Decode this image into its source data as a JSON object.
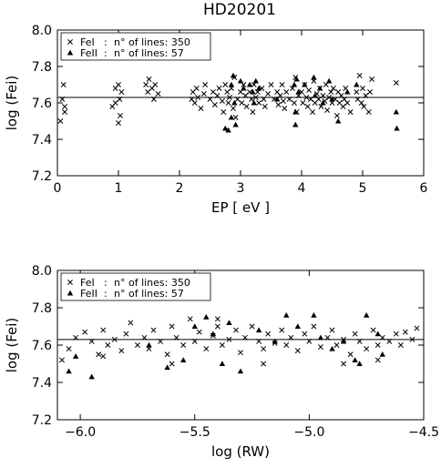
{
  "figure": {
    "title": "HD20201"
  },
  "chart_data": [
    {
      "type": "scatter",
      "xlabel": "EP [ eV ]",
      "ylabel": "log (Fei)",
      "xlim": [
        0,
        6
      ],
      "ylim": [
        7.2,
        8.0
      ],
      "x_ticks": [
        0,
        1,
        2,
        3,
        4,
        5,
        6
      ],
      "x_tick_labels": [
        "0",
        "1",
        "2",
        "3",
        "4",
        "5",
        "6"
      ],
      "y_ticks": [
        7.2,
        7.4,
        7.6,
        7.8,
        8.0
      ],
      "y_tick_labels": [
        "7.2",
        "7.4",
        "7.6",
        "7.8",
        "8.0"
      ],
      "mean_line": 7.63,
      "legend_position": "top-left",
      "legend": [
        {
          "marker": "cross",
          "species": "FeI",
          "text": "n° of lines: 350"
        },
        {
          "marker": "triangle",
          "species": "FeII",
          "text": "n° of lines:  57"
        }
      ],
      "series": [
        {
          "name": "FeI",
          "marker": "cross",
          "points": [
            [
              0.05,
              7.5
            ],
            [
              0.08,
              7.62
            ],
            [
              0.1,
              7.7
            ],
            [
              0.12,
              7.58
            ],
            [
              0.12,
              7.55
            ],
            [
              0.95,
              7.6
            ],
            [
              0.95,
              7.68
            ],
            [
              1.0,
              7.7
            ],
            [
              1.02,
              7.62
            ],
            [
              1.03,
              7.53
            ],
            [
              1.05,
              7.66
            ],
            [
              1.0,
              7.49
            ],
            [
              0.9,
              7.58
            ],
            [
              1.45,
              7.7
            ],
            [
              1.48,
              7.66
            ],
            [
              1.5,
              7.73
            ],
            [
              1.55,
              7.68
            ],
            [
              1.58,
              7.62
            ],
            [
              1.6,
              7.7
            ],
            [
              1.65,
              7.65
            ],
            [
              2.2,
              7.62
            ],
            [
              2.22,
              7.66
            ],
            [
              2.25,
              7.6
            ],
            [
              2.28,
              7.68
            ],
            [
              2.3,
              7.63
            ],
            [
              2.35,
              7.57
            ],
            [
              2.4,
              7.65
            ],
            [
              2.42,
              7.7
            ],
            [
              2.5,
              7.62
            ],
            [
              2.55,
              7.66
            ],
            [
              2.58,
              7.59
            ],
            [
              2.62,
              7.64
            ],
            [
              2.65,
              7.68
            ],
            [
              2.7,
              7.61
            ],
            [
              2.72,
              7.55
            ],
            [
              2.75,
              7.7
            ],
            [
              2.78,
              7.66
            ],
            [
              2.8,
              7.6
            ],
            [
              2.82,
              7.63
            ],
            [
              2.85,
              7.68
            ],
            [
              2.88,
              7.57
            ],
            [
              2.9,
              7.74
            ],
            [
              2.92,
              7.52
            ],
            [
              2.95,
              7.62
            ],
            [
              3.0,
              7.66
            ],
            [
              3.02,
              7.6
            ],
            [
              3.05,
              7.7
            ],
            [
              3.08,
              7.64
            ],
            [
              3.1,
              7.58
            ],
            [
              3.15,
              7.66
            ],
            [
              3.18,
              7.62
            ],
            [
              3.2,
              7.55
            ],
            [
              3.22,
              7.7
            ],
            [
              3.25,
              7.63
            ],
            [
              3.28,
              7.66
            ],
            [
              3.3,
              7.6
            ],
            [
              3.35,
              7.68
            ],
            [
              3.38,
              7.62
            ],
            [
              3.4,
              7.58
            ],
            [
              3.45,
              7.65
            ],
            [
              3.5,
              7.7
            ],
            [
              3.55,
              7.62
            ],
            [
              3.6,
              7.66
            ],
            [
              3.62,
              7.59
            ],
            [
              3.65,
              7.64
            ],
            [
              3.68,
              7.7
            ],
            [
              3.7,
              7.61
            ],
            [
              3.72,
              7.57
            ],
            [
              3.75,
              7.66
            ],
            [
              3.8,
              7.62
            ],
            [
              3.85,
              7.68
            ],
            [
              3.88,
              7.6
            ],
            [
              3.9,
              7.74
            ],
            [
              3.92,
              7.55
            ],
            [
              3.95,
              7.64
            ],
            [
              4.0,
              7.66
            ],
            [
              4.02,
              7.6
            ],
            [
              4.05,
              7.7
            ],
            [
              4.08,
              7.63
            ],
            [
              4.1,
              7.58
            ],
            [
              4.12,
              7.67
            ],
            [
              4.15,
              7.62
            ],
            [
              4.18,
              7.55
            ],
            [
              4.2,
              7.72
            ],
            [
              4.22,
              7.6
            ],
            [
              4.25,
              7.65
            ],
            [
              4.28,
              7.62
            ],
            [
              4.3,
              7.68
            ],
            [
              4.32,
              7.58
            ],
            [
              4.35,
              7.64
            ],
            [
              4.38,
              7.61
            ],
            [
              4.4,
              7.7
            ],
            [
              4.42,
              7.56
            ],
            [
              4.45,
              7.63
            ],
            [
              4.48,
              7.66
            ],
            [
              4.5,
              7.6
            ],
            [
              4.52,
              7.68
            ],
            [
              4.55,
              7.62
            ],
            [
              4.58,
              7.53
            ],
            [
              4.6,
              7.66
            ],
            [
              4.62,
              7.6
            ],
            [
              4.65,
              7.64
            ],
            [
              4.68,
              7.58
            ],
            [
              4.7,
              7.62
            ],
            [
              4.72,
              7.68
            ],
            [
              4.75,
              7.6
            ],
            [
              4.8,
              7.55
            ],
            [
              4.9,
              7.66
            ],
            [
              4.92,
              7.62
            ],
            [
              4.95,
              7.75
            ],
            [
              4.98,
              7.6
            ],
            [
              5.0,
              7.68
            ],
            [
              5.02,
              7.58
            ],
            [
              5.05,
              7.64
            ],
            [
              5.1,
              7.55
            ],
            [
              5.12,
              7.66
            ],
            [
              5.15,
              7.73
            ],
            [
              5.55,
              7.71
            ]
          ]
        },
        {
          "name": "FeII",
          "marker": "triangle",
          "points": [
            [
              2.75,
              7.46
            ],
            [
              2.8,
              7.45
            ],
            [
              2.85,
              7.7
            ],
            [
              2.85,
              7.52
            ],
            [
              2.88,
              7.75
            ],
            [
              2.9,
              7.6
            ],
            [
              2.92,
              7.48
            ],
            [
              3.0,
              7.72
            ],
            [
              3.05,
              7.68
            ],
            [
              3.15,
              7.7
            ],
            [
              3.2,
              7.66
            ],
            [
              3.22,
              7.6
            ],
            [
              3.25,
              7.72
            ],
            [
              3.3,
              7.68
            ],
            [
              3.6,
              7.62
            ],
            [
              3.88,
              7.7
            ],
            [
              3.9,
              7.55
            ],
            [
              3.9,
              7.48
            ],
            [
              3.92,
              7.73
            ],
            [
              3.95,
              7.66
            ],
            [
              4.05,
              7.7
            ],
            [
              4.2,
              7.74
            ],
            [
              4.22,
              7.64
            ],
            [
              4.3,
              7.68
            ],
            [
              4.35,
              7.6
            ],
            [
              4.45,
              7.72
            ],
            [
              4.5,
              7.62
            ],
            [
              4.6,
              7.5
            ],
            [
              4.75,
              7.66
            ],
            [
              4.9,
              7.7
            ],
            [
              5.55,
              7.55
            ],
            [
              5.56,
              7.46
            ]
          ]
        }
      ]
    },
    {
      "type": "scatter",
      "xlabel": "log (RW)",
      "ylabel": "log (Fei)",
      "xlim": [
        -6.1,
        -4.5
      ],
      "ylim": [
        7.2,
        8.0
      ],
      "x_ticks": [
        -6.0,
        -5.5,
        -5.0,
        -4.5
      ],
      "x_tick_labels": [
        "−6.0",
        "−5.5",
        "−5.0",
        "−4.5"
      ],
      "y_ticks": [
        7.2,
        7.4,
        7.6,
        7.8,
        8.0
      ],
      "y_tick_labels": [
        "7.2",
        "7.4",
        "7.6",
        "7.8",
        "8.0"
      ],
      "mean_line": 7.63,
      "legend_position": "top-left",
      "legend": [
        {
          "marker": "cross",
          "species": "FeI",
          "text": "n° of lines: 350"
        },
        {
          "marker": "triangle",
          "species": "FeII",
          "text": "n° of lines:  57"
        }
      ],
      "series": [
        {
          "name": "FeI",
          "marker": "cross",
          "points": [
            [
              -6.08,
              7.52
            ],
            [
              -6.05,
              7.58
            ],
            [
              -6.02,
              7.64
            ],
            [
              -5.98,
              7.67
            ],
            [
              -5.95,
              7.62
            ],
            [
              -5.92,
              7.55
            ],
            [
              -5.9,
              7.68
            ],
            [
              -5.88,
              7.6
            ],
            [
              -5.85,
              7.63
            ],
            [
              -5.82,
              7.57
            ],
            [
              -5.8,
              7.66
            ],
            [
              -5.78,
              7.72
            ],
            [
              -5.75,
              7.6
            ],
            [
              -5.72,
              7.64
            ],
            [
              -5.7,
              7.58
            ],
            [
              -5.68,
              7.68
            ],
            [
              -5.65,
              7.62
            ],
            [
              -5.62,
              7.55
            ],
            [
              -5.6,
              7.7
            ],
            [
              -5.58,
              7.64
            ],
            [
              -5.55,
              7.6
            ],
            [
              -5.52,
              7.74
            ],
            [
              -5.5,
              7.62
            ],
            [
              -5.48,
              7.67
            ],
            [
              -5.45,
              7.58
            ],
            [
              -5.42,
              7.65
            ],
            [
              -5.4,
              7.7
            ],
            [
              -5.38,
              7.6
            ],
            [
              -5.35,
              7.63
            ],
            [
              -5.32,
              7.68
            ],
            [
              -5.3,
              7.56
            ],
            [
              -5.28,
              7.64
            ],
            [
              -5.25,
              7.7
            ],
            [
              -5.22,
              7.62
            ],
            [
              -5.2,
              7.58
            ],
            [
              -5.18,
              7.66
            ],
            [
              -5.15,
              7.61
            ],
            [
              -5.12,
              7.68
            ],
            [
              -5.1,
              7.6
            ],
            [
              -5.08,
              7.64
            ],
            [
              -5.05,
              7.57
            ],
            [
              -5.02,
              7.66
            ],
            [
              -5.0,
              7.62
            ],
            [
              -4.98,
              7.7
            ],
            [
              -4.95,
              7.59
            ],
            [
              -4.92,
              7.64
            ],
            [
              -4.9,
              7.68
            ],
            [
              -4.88,
              7.6
            ],
            [
              -4.85,
              7.63
            ],
            [
              -4.82,
              7.55
            ],
            [
              -4.8,
              7.66
            ],
            [
              -4.78,
              7.62
            ],
            [
              -4.75,
              7.58
            ],
            [
              -4.72,
              7.68
            ],
            [
              -4.7,
              7.6
            ],
            [
              -4.68,
              7.64
            ],
            [
              -4.65,
              7.62
            ],
            [
              -4.62,
              7.66
            ],
            [
              -4.6,
              7.6
            ],
            [
              -4.58,
              7.67
            ],
            [
              -4.55,
              7.63
            ],
            [
              -4.53,
              7.69
            ],
            [
              -5.9,
              7.54
            ],
            [
              -5.6,
              7.5
            ],
            [
              -5.4,
              7.74
            ],
            [
              -5.2,
              7.5
            ],
            [
              -4.85,
              7.5
            ],
            [
              -4.7,
              7.52
            ]
          ]
        },
        {
          "name": "FeII",
          "marker": "triangle",
          "points": [
            [
              -6.05,
              7.46
            ],
            [
              -6.02,
              7.54
            ],
            [
              -5.95,
              7.43
            ],
            [
              -5.7,
              7.6
            ],
            [
              -5.62,
              7.48
            ],
            [
              -5.55,
              7.52
            ],
            [
              -5.5,
              7.7
            ],
            [
              -5.45,
              7.75
            ],
            [
              -5.42,
              7.66
            ],
            [
              -5.38,
              7.5
            ],
            [
              -5.35,
              7.72
            ],
            [
              -5.3,
              7.46
            ],
            [
              -5.22,
              7.68
            ],
            [
              -5.15,
              7.62
            ],
            [
              -5.1,
              7.76
            ],
            [
              -5.05,
              7.7
            ],
            [
              -4.98,
              7.76
            ],
            [
              -4.95,
              7.64
            ],
            [
              -4.9,
              7.58
            ],
            [
              -4.85,
              7.62
            ],
            [
              -4.8,
              7.52
            ],
            [
              -4.78,
              7.5
            ],
            [
              -4.75,
              7.76
            ],
            [
              -4.7,
              7.66
            ],
            [
              -4.68,
              7.55
            ]
          ]
        }
      ]
    }
  ]
}
